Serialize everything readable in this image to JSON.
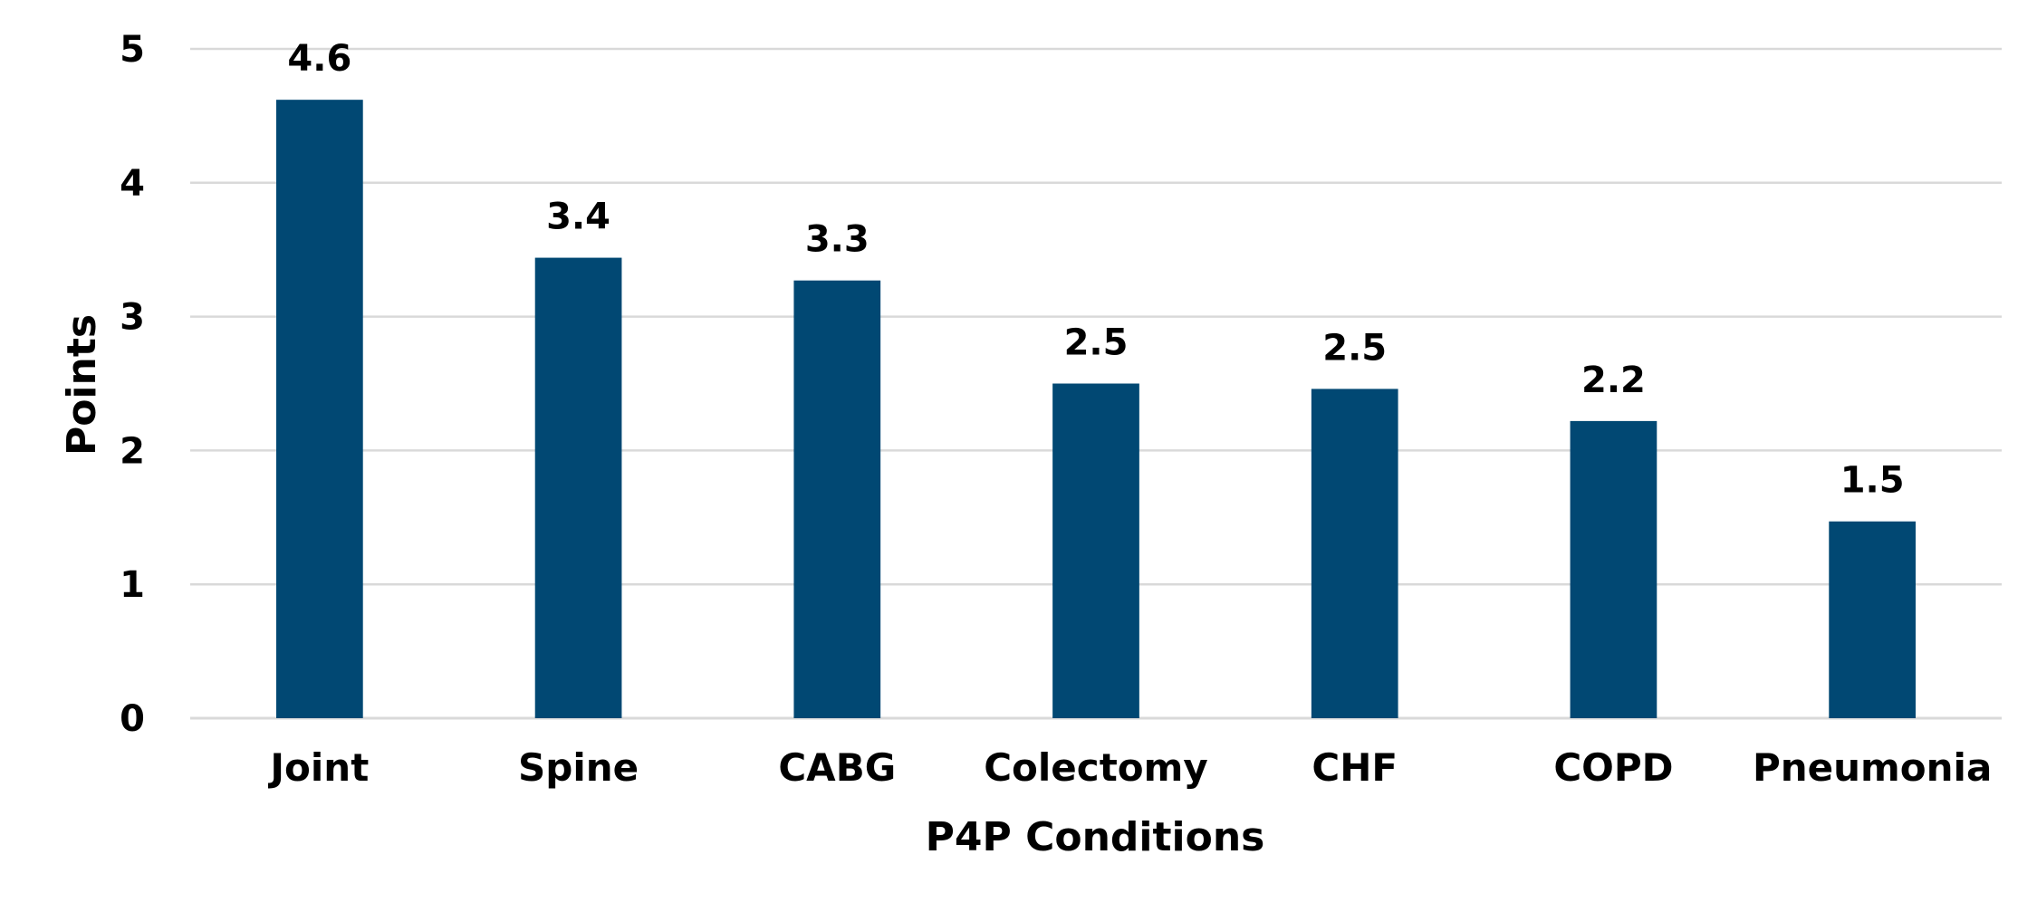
{
  "chart_data": {
    "type": "bar",
    "title": "",
    "xlabel": "P4P Conditions",
    "ylabel": "Points",
    "categories": [
      "Joint",
      "Spine",
      "CABG",
      "Colectomy",
      "CHF",
      "COPD",
      "Pneumonia"
    ],
    "values": [
      4.62,
      3.44,
      3.27,
      2.5,
      2.46,
      2.22,
      1.47
    ],
    "data_labels": [
      "4.6",
      "3.4",
      "3.3",
      "2.5",
      "2.5",
      "2.2",
      "1.5"
    ],
    "yticks": [
      "0",
      "1",
      "2",
      "3",
      "4",
      "5"
    ],
    "ylim": [
      0,
      5
    ],
    "grid": true,
    "legend": "none",
    "colors": {
      "bar": "#014873",
      "grid": "#d9d9d9",
      "text": "#000000"
    }
  }
}
